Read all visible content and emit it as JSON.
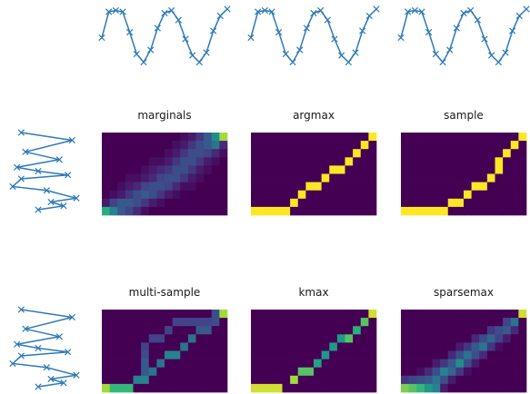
{
  "chart_data": {
    "type": "heatmap",
    "description_free": true,
    "panels": [
      {
        "title": "marginals",
        "matrix": [
          [
            0,
            0,
            0,
            0,
            0,
            0,
            0,
            0,
            0,
            0,
            0.05,
            0.1,
            0.2,
            0.35,
            0.55,
            0.9
          ],
          [
            0,
            0,
            0,
            0,
            0,
            0,
            0,
            0,
            0,
            0.05,
            0.1,
            0.2,
            0.3,
            0.35,
            0.45,
            0.15
          ],
          [
            0,
            0,
            0,
            0,
            0,
            0,
            0,
            0,
            0.05,
            0.1,
            0.2,
            0.3,
            0.3,
            0.25,
            0.15,
            0.05
          ],
          [
            0,
            0,
            0,
            0,
            0,
            0,
            0.05,
            0.05,
            0.1,
            0.2,
            0.3,
            0.3,
            0.2,
            0.1,
            0.05,
            0
          ],
          [
            0,
            0,
            0,
            0,
            0,
            0.05,
            0.1,
            0.15,
            0.2,
            0.3,
            0.3,
            0.2,
            0.1,
            0.05,
            0,
            0
          ],
          [
            0,
            0,
            0,
            0.05,
            0.05,
            0.1,
            0.15,
            0.25,
            0.3,
            0.3,
            0.2,
            0.1,
            0.05,
            0,
            0,
            0
          ],
          [
            0,
            0,
            0.05,
            0.1,
            0.15,
            0.25,
            0.3,
            0.3,
            0.25,
            0.15,
            0.05,
            0.05,
            0,
            0,
            0,
            0
          ],
          [
            0,
            0.05,
            0.1,
            0.2,
            0.3,
            0.35,
            0.3,
            0.2,
            0.1,
            0.05,
            0,
            0,
            0,
            0,
            0,
            0
          ],
          [
            0.1,
            0.25,
            0.35,
            0.35,
            0.3,
            0.2,
            0.1,
            0.05,
            0,
            0,
            0,
            0,
            0,
            0,
            0,
            0
          ],
          [
            0.7,
            0.5,
            0.35,
            0.25,
            0.15,
            0.05,
            0,
            0,
            0,
            0,
            0,
            0,
            0,
            0,
            0,
            0
          ]
        ]
      },
      {
        "title": "argmax",
        "path": [
          [
            0,
            9
          ],
          [
            1,
            9
          ],
          [
            2,
            9
          ],
          [
            3,
            9
          ],
          [
            4,
            9
          ],
          [
            5,
            8
          ],
          [
            6,
            7
          ],
          [
            7,
            6
          ],
          [
            8,
            6
          ],
          [
            9,
            5
          ],
          [
            10,
            4
          ],
          [
            11,
            4
          ],
          [
            12,
            3
          ],
          [
            13,
            2
          ],
          [
            14,
            1
          ],
          [
            15,
            0
          ]
        ]
      },
      {
        "title": "sample",
        "path": [
          [
            0,
            9
          ],
          [
            1,
            9
          ],
          [
            2,
            9
          ],
          [
            3,
            9
          ],
          [
            4,
            9
          ],
          [
            5,
            9
          ],
          [
            6,
            8
          ],
          [
            7,
            8
          ],
          [
            8,
            7
          ],
          [
            9,
            6
          ],
          [
            10,
            6
          ],
          [
            11,
            5
          ],
          [
            12,
            4
          ],
          [
            12,
            3
          ],
          [
            13,
            2
          ],
          [
            14,
            1
          ],
          [
            15,
            0
          ]
        ]
      },
      {
        "title": "multi-sample",
        "matrix": [
          [
            0,
            0,
            0,
            0,
            0,
            0,
            0,
            0,
            0,
            0,
            0,
            0,
            0,
            0,
            0.3,
            0.9
          ],
          [
            0,
            0,
            0,
            0,
            0,
            0,
            0,
            0,
            0,
            0.25,
            0.25,
            0.25,
            0.25,
            0.25,
            0.3,
            0
          ],
          [
            0,
            0,
            0,
            0,
            0,
            0,
            0,
            0,
            0.25,
            0,
            0,
            0,
            0.35,
            0.35,
            0,
            0
          ],
          [
            0,
            0,
            0,
            0,
            0,
            0,
            0.25,
            0.25,
            0,
            0,
            0,
            0.45,
            0,
            0,
            0,
            0
          ],
          [
            0,
            0,
            0,
            0,
            0,
            0.25,
            0,
            0,
            0,
            0,
            0.45,
            0,
            0,
            0,
            0,
            0
          ],
          [
            0,
            0,
            0,
            0,
            0,
            0.3,
            0,
            0,
            0.5,
            0.5,
            0,
            0,
            0,
            0,
            0,
            0
          ],
          [
            0,
            0,
            0,
            0,
            0,
            0.35,
            0,
            0.45,
            0,
            0,
            0,
            0,
            0,
            0,
            0,
            0
          ],
          [
            0,
            0,
            0,
            0,
            0,
            0.35,
            0.45,
            0,
            0,
            0,
            0,
            0,
            0,
            0,
            0,
            0
          ],
          [
            0,
            0,
            0,
            0,
            0.5,
            0.5,
            0,
            0,
            0,
            0,
            0,
            0,
            0,
            0,
            0,
            0
          ],
          [
            0.9,
            0.75,
            0.75,
            0.75,
            0,
            0,
            0,
            0,
            0,
            0,
            0,
            0,
            0,
            0,
            0,
            0
          ]
        ]
      },
      {
        "title": "kmax",
        "matrix": [
          [
            0,
            0,
            0,
            0,
            0,
            0,
            0,
            0,
            0,
            0,
            0,
            0,
            0,
            0,
            0,
            0.95
          ],
          [
            0,
            0,
            0,
            0,
            0,
            0,
            0,
            0,
            0,
            0,
            0,
            0,
            0,
            0,
            0.8,
            0
          ],
          [
            0,
            0,
            0,
            0,
            0,
            0,
            0,
            0,
            0,
            0,
            0,
            0,
            0,
            0.7,
            0,
            0
          ],
          [
            0,
            0,
            0,
            0,
            0,
            0,
            0,
            0,
            0,
            0,
            0,
            0.6,
            0.8,
            0,
            0,
            0
          ],
          [
            0,
            0,
            0,
            0,
            0,
            0,
            0,
            0,
            0,
            0,
            0.6,
            0,
            0,
            0,
            0,
            0
          ],
          [
            0,
            0,
            0,
            0,
            0,
            0,
            0,
            0,
            0,
            0.6,
            0,
            0,
            0,
            0,
            0,
            0
          ],
          [
            0,
            0,
            0,
            0,
            0,
            0,
            0,
            0,
            0.65,
            0,
            0,
            0,
            0,
            0,
            0,
            0
          ],
          [
            0,
            0,
            0,
            0,
            0,
            0,
            0.8,
            0.8,
            0,
            0,
            0,
            0,
            0,
            0,
            0,
            0
          ],
          [
            0,
            0,
            0,
            0,
            0,
            0.9,
            0,
            0,
            0,
            0,
            0,
            0,
            0,
            0,
            0,
            0
          ],
          [
            0.95,
            0.95,
            0.95,
            0.95,
            0,
            0,
            0,
            0,
            0,
            0,
            0,
            0,
            0,
            0,
            0,
            0
          ]
        ]
      },
      {
        "title": "sparsemax",
        "matrix": [
          [
            0,
            0,
            0,
            0,
            0,
            0,
            0,
            0,
            0,
            0,
            0,
            0,
            0,
            0,
            0,
            0.95
          ],
          [
            0,
            0,
            0,
            0,
            0,
            0,
            0,
            0,
            0,
            0,
            0,
            0,
            0,
            0.25,
            0.45,
            0
          ],
          [
            0,
            0,
            0,
            0,
            0,
            0,
            0,
            0,
            0,
            0,
            0,
            0.2,
            0.3,
            0.35,
            0.15,
            0
          ],
          [
            0,
            0,
            0,
            0,
            0,
            0,
            0,
            0,
            0,
            0.15,
            0.3,
            0.4,
            0.25,
            0.1,
            0,
            0
          ],
          [
            0,
            0,
            0,
            0,
            0,
            0,
            0,
            0.1,
            0.2,
            0.35,
            0.45,
            0.2,
            0.05,
            0,
            0,
            0
          ],
          [
            0,
            0,
            0,
            0,
            0,
            0,
            0.15,
            0.3,
            0.45,
            0.3,
            0.15,
            0,
            0,
            0,
            0,
            0
          ],
          [
            0,
            0,
            0,
            0,
            0.1,
            0.2,
            0.35,
            0.55,
            0.3,
            0.1,
            0,
            0,
            0,
            0,
            0,
            0
          ],
          [
            0,
            0,
            0.05,
            0.15,
            0.3,
            0.5,
            0.4,
            0.2,
            0.05,
            0,
            0,
            0,
            0,
            0,
            0,
            0
          ],
          [
            0.2,
            0.25,
            0.3,
            0.35,
            0.45,
            0.3,
            0.1,
            0,
            0,
            0,
            0,
            0,
            0,
            0,
            0,
            0
          ],
          [
            0.85,
            0.8,
            0.75,
            0.6,
            0.5,
            0.1,
            0,
            0,
            0,
            0,
            0,
            0,
            0,
            0,
            0,
            0
          ]
        ]
      }
    ],
    "series_top": {
      "x": [
        0,
        1,
        2,
        3,
        4,
        5,
        6,
        7,
        8,
        9,
        10,
        11,
        12,
        13,
        14,
        15,
        16,
        17,
        18
      ],
      "y": [
        -0.05,
        0.9,
        0.95,
        0.9,
        0.15,
        -0.65,
        -0.95,
        -0.5,
        0.3,
        0.85,
        0.95,
        0.6,
        -0.1,
        -0.7,
        -0.95,
        -0.6,
        0.2,
        0.75,
        1.0
      ]
    },
    "series_left": {
      "x": [
        -0.3,
        0.9,
        -0.2,
        0.6,
        -0.4,
        0.1,
        0.8,
        -0.3,
        -0.5,
        0.3,
        1.0,
        0.4,
        0.7,
        0.1
      ],
      "y": [
        0,
        0.1,
        0.25,
        0.35,
        0.45,
        0.5,
        0.55,
        0.6,
        0.7,
        0.75,
        0.85,
        0.9,
        0.95,
        1.0
      ]
    }
  }
}
